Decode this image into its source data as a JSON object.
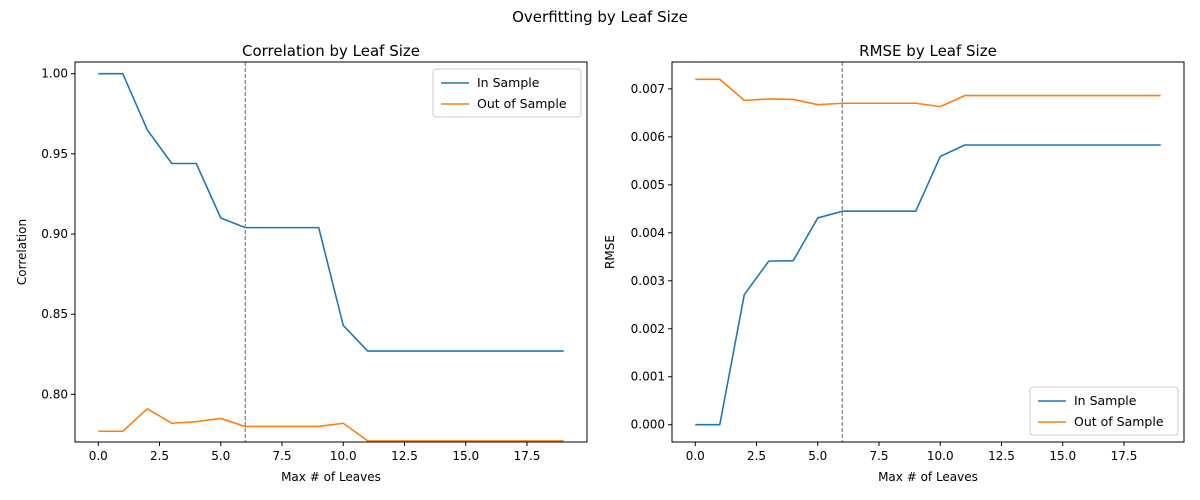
{
  "figure": {
    "suptitle": "Overfitting by Leaf Size"
  },
  "colors": {
    "in_sample": "#1f77b4",
    "out_sample": "#ff7f0e",
    "vline": "#808080",
    "axes": "#000000",
    "legend_border": "#cccccc"
  },
  "chart_data": [
    {
      "type": "line",
      "title": "Correlation by Leaf Size",
      "xlabel": "Max # of Leaves",
      "ylabel": "Correlation",
      "xlim": [
        -0.95,
        19.95
      ],
      "ylim": [
        0.7703,
        1.0073
      ],
      "xticks": [
        0.0,
        2.5,
        5.0,
        7.5,
        10.0,
        12.5,
        15.0,
        17.5
      ],
      "xtick_labels": [
        "0.0",
        "2.5",
        "5.0",
        "7.5",
        "10.0",
        "12.5",
        "15.0",
        "17.5"
      ],
      "yticks": [
        0.8,
        0.85,
        0.9,
        0.95,
        1.0
      ],
      "ytick_labels": [
        "0.80",
        "0.85",
        "0.90",
        "0.95",
        "1.00"
      ],
      "vline": 6,
      "legend": "upper-right",
      "grid": false,
      "x": [
        0,
        1,
        2,
        3,
        4,
        5,
        6,
        7,
        8,
        9,
        10,
        11,
        12,
        13,
        14,
        15,
        16,
        17,
        18,
        19
      ],
      "series": [
        {
          "name": "In Sample",
          "values": [
            1.0,
            1.0,
            0.965,
            0.944,
            0.944,
            0.91,
            0.904,
            0.904,
            0.904,
            0.904,
            0.843,
            0.827,
            0.827,
            0.827,
            0.827,
            0.827,
            0.827,
            0.827,
            0.827,
            0.827
          ]
        },
        {
          "name": "Out of Sample",
          "values": [
            0.777,
            0.777,
            0.791,
            0.782,
            0.783,
            0.785,
            0.78,
            0.78,
            0.78,
            0.78,
            0.782,
            0.771,
            0.771,
            0.771,
            0.771,
            0.771,
            0.771,
            0.771,
            0.771,
            0.771
          ]
        }
      ]
    },
    {
      "type": "line",
      "title": "RMSE by Leaf Size",
      "xlabel": "Max # of Leaves",
      "ylabel": "RMSE",
      "xlim": [
        -0.95,
        19.95
      ],
      "ylim": [
        -0.00036,
        0.00756
      ],
      "xticks": [
        0.0,
        2.5,
        5.0,
        7.5,
        10.0,
        12.5,
        15.0,
        17.5
      ],
      "xtick_labels": [
        "0.0",
        "2.5",
        "5.0",
        "7.5",
        "10.0",
        "12.5",
        "15.0",
        "17.5"
      ],
      "yticks": [
        0.0,
        0.001,
        0.002,
        0.003,
        0.004,
        0.005,
        0.006,
        0.007
      ],
      "ytick_labels": [
        "0.000",
        "0.001",
        "0.002",
        "0.003",
        "0.004",
        "0.005",
        "0.006",
        "0.007"
      ],
      "vline": 6,
      "legend": "lower-right",
      "grid": false,
      "x": [
        0,
        1,
        2,
        3,
        4,
        5,
        6,
        7,
        8,
        9,
        10,
        11,
        12,
        13,
        14,
        15,
        16,
        17,
        18,
        19
      ],
      "series": [
        {
          "name": "In Sample",
          "values": [
            0.0,
            0.0,
            0.00271,
            0.00341,
            0.00342,
            0.00431,
            0.00445,
            0.00445,
            0.00445,
            0.00445,
            0.00559,
            0.00583,
            0.00583,
            0.00583,
            0.00583,
            0.00583,
            0.00583,
            0.00583,
            0.00583,
            0.00583
          ]
        },
        {
          "name": "Out of Sample",
          "values": [
            0.0072,
            0.0072,
            0.00676,
            0.00679,
            0.00678,
            0.00667,
            0.0067,
            0.0067,
            0.0067,
            0.0067,
            0.00663,
            0.00686,
            0.00686,
            0.00686,
            0.00686,
            0.00686,
            0.00686,
            0.00686,
            0.00686,
            0.00686
          ]
        }
      ]
    }
  ]
}
